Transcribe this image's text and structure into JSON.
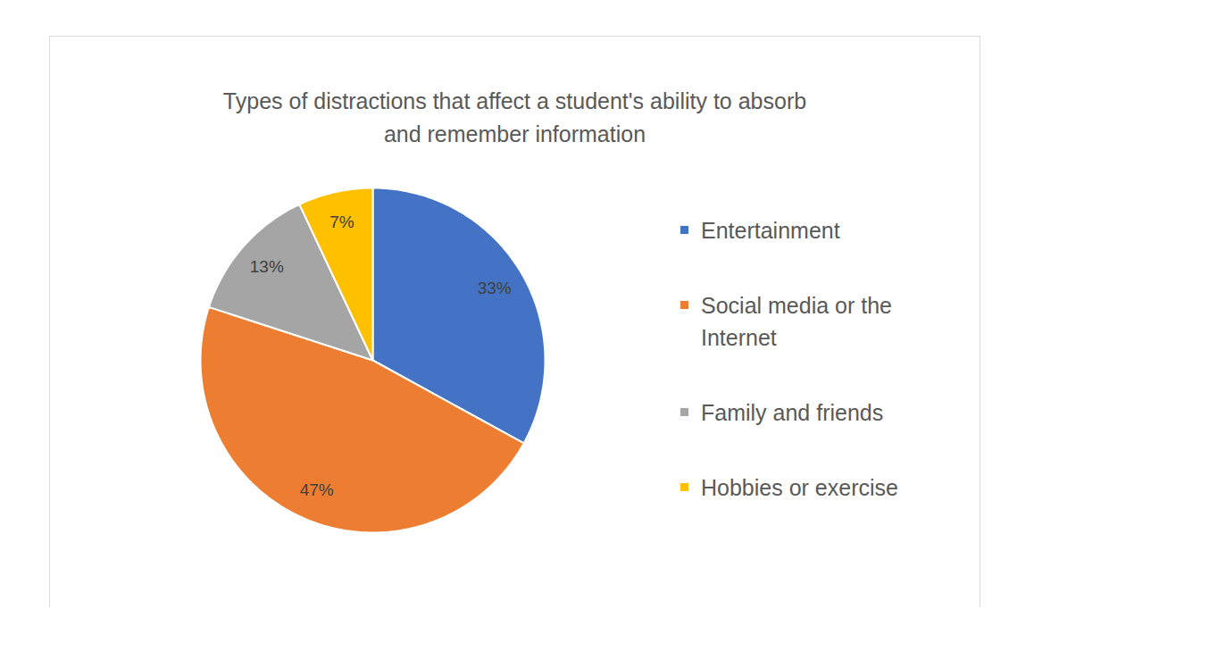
{
  "chart_data": {
    "type": "pie",
    "title": "Types of distractions that affect a student's ability to absorb and remember information",
    "categories": [
      "Entertainment",
      "Social media or the Internet",
      "Family and friends",
      "Hobbies or exercise"
    ],
    "values": [
      33,
      47,
      13,
      7
    ],
    "value_labels": [
      "33%",
      "47%",
      "13%",
      "7%"
    ],
    "colors": [
      "#4472c4",
      "#ed7d31",
      "#a5a5a5",
      "#ffc000"
    ],
    "data_labels": true,
    "legend": "right"
  }
}
